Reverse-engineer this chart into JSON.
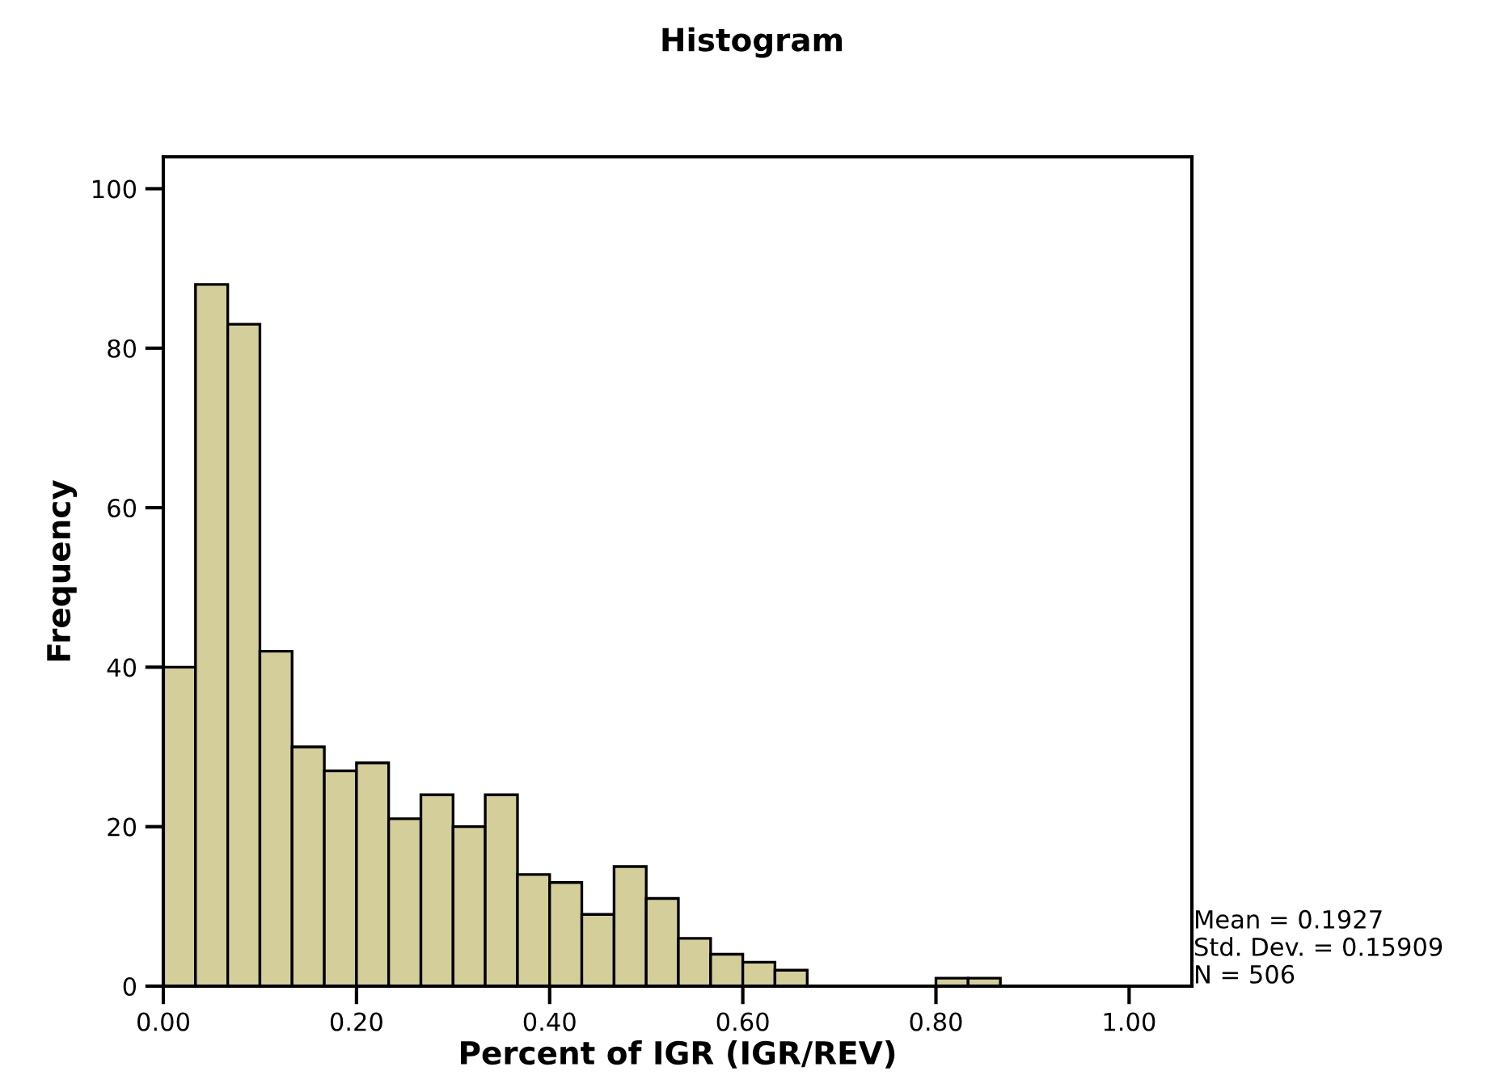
{
  "chart_data": {
    "type": "histogram",
    "title": "Histogram",
    "xlabel": "Percent of IGR (IGR/REV)",
    "ylabel": "Frequency",
    "bins": [
      0,
      0.0333,
      0.0667,
      0.1,
      0.1333,
      0.1667,
      0.2,
      0.2333,
      0.2667,
      0.3,
      0.3333,
      0.3667,
      0.4,
      0.4333,
      0.4667,
      0.5,
      0.5333,
      0.5667,
      0.6,
      0.6333,
      0.6667,
      0.7,
      0.7333,
      0.7667,
      0.8,
      0.8333,
      0.8667
    ],
    "values": [
      40,
      88,
      83,
      42,
      30,
      27,
      28,
      21,
      24,
      20,
      24,
      14,
      13,
      9,
      15,
      11,
      6,
      4,
      3,
      2,
      0,
      0,
      0,
      0,
      1,
      1
    ],
    "color": "#d4cf9a",
    "xlim": [
      0,
      1.065
    ],
    "ylim": [
      0,
      104
    ],
    "xticks": [
      {
        "value": 0,
        "label": "0.00"
      },
      {
        "value": 0.2,
        "label": "0.20"
      },
      {
        "value": 0.4,
        "label": "0.40"
      },
      {
        "value": 0.6,
        "label": "0.60"
      },
      {
        "value": 0.8,
        "label": "0.80"
      },
      {
        "value": 1.0,
        "label": "1.00"
      }
    ],
    "yticks": [
      0,
      20,
      40,
      60,
      80,
      100
    ],
    "grid": false,
    "legend": false,
    "annotations": [
      "Mean = 0.1927",
      "Std. Dev. = 0.15909",
      "N = 506"
    ]
  }
}
